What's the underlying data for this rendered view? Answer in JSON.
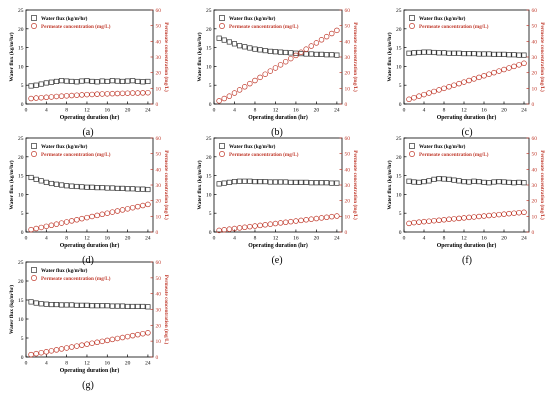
{
  "chart_data": [
    {
      "type": "scatter",
      "panel_label": "(a)",
      "xlabel": "Operating duration (hr)",
      "ylabel_left": "Water flux (kg/m²hr)",
      "ylabel_right": "Permeate concentration (mg/L)",
      "xlim": [
        0,
        25
      ],
      "ylim_left": [
        0,
        25
      ],
      "ylim_right": [
        0,
        60
      ],
      "xticks": [
        0,
        4,
        8,
        12,
        16,
        20,
        24
      ],
      "yticks_left": [
        0,
        5,
        10,
        15,
        20,
        25
      ],
      "yticks_right": [
        0,
        10,
        20,
        30,
        40,
        50,
        60
      ],
      "legend": [
        "Water flux (kg/m²hr)",
        "Permeate concentration (mg/L)"
      ],
      "series": [
        {
          "name": "Water flux (kg/m²hr)",
          "axis": "left",
          "marker": "square",
          "x": [
            1,
            2,
            3,
            4,
            5,
            6,
            7,
            8,
            9,
            10,
            11,
            12,
            13,
            14,
            15,
            16,
            17,
            18,
            19,
            20,
            21,
            22,
            23,
            24
          ],
          "y": [
            4.8,
            5.0,
            5.3,
            5.6,
            5.8,
            6.0,
            6.2,
            6.1,
            6.0,
            5.9,
            6.1,
            6.2,
            6.0,
            5.9,
            6.1,
            6.0,
            6.2,
            6.1,
            6.0,
            6.1,
            6.2,
            6.0,
            5.9,
            6.0
          ]
        },
        {
          "name": "Permeate concentration (mg/L)",
          "axis": "right",
          "marker": "circle",
          "x": [
            1,
            2,
            3,
            4,
            5,
            6,
            7,
            8,
            9,
            10,
            11,
            12,
            13,
            14,
            15,
            16,
            17,
            18,
            19,
            20,
            21,
            22,
            23,
            24
          ],
          "y": [
            3.5,
            3.8,
            4.0,
            4.3,
            4.5,
            4.8,
            5.0,
            5.2,
            5.4,
            5.6,
            5.8,
            6.0,
            6.1,
            6.3,
            6.4,
            6.5,
            6.6,
            6.7,
            6.8,
            6.9,
            7.0,
            7.0,
            7.1,
            7.2
          ]
        }
      ]
    },
    {
      "type": "scatter",
      "panel_label": "(b)",
      "xlabel": "Operating duration (hr)",
      "ylabel_left": "Water flux (kg/m²hr)",
      "ylabel_right": "Permeate concentration (mg/L)",
      "xlim": [
        0,
        25
      ],
      "ylim_left": [
        0,
        25
      ],
      "ylim_right": [
        0,
        60
      ],
      "xticks": [
        0,
        4,
        8,
        12,
        16,
        20,
        24
      ],
      "yticks_left": [
        0,
        5,
        10,
        15,
        20,
        25
      ],
      "yticks_right": [
        0,
        10,
        20,
        30,
        40,
        50,
        60
      ],
      "legend": [
        "Water flux (kg/m²hr)",
        "Permeate concentration (mg/L)"
      ],
      "series": [
        {
          "name": "Water flux (kg/m²hr)",
          "axis": "left",
          "marker": "square",
          "x": [
            1,
            2,
            3,
            4,
            5,
            6,
            7,
            8,
            9,
            10,
            11,
            12,
            13,
            14,
            15,
            16,
            17,
            18,
            19,
            20,
            21,
            22,
            23,
            24
          ],
          "y": [
            17.5,
            17.0,
            16.5,
            16.0,
            15.5,
            15.2,
            14.9,
            14.6,
            14.4,
            14.2,
            14.0,
            13.9,
            13.8,
            13.7,
            13.6,
            13.5,
            13.4,
            13.3,
            13.3,
            13.2,
            13.2,
            13.1,
            13.1,
            13.0
          ]
        },
        {
          "name": "Permeate concentration (mg/L)",
          "axis": "right",
          "marker": "circle",
          "x": [
            1,
            2,
            3,
            4,
            5,
            6,
            7,
            8,
            9,
            10,
            11,
            12,
            13,
            14,
            15,
            16,
            17,
            18,
            19,
            20,
            21,
            22,
            23,
            24
          ],
          "y": [
            2,
            3.5,
            5,
            7,
            9,
            11,
            13,
            15,
            17,
            19,
            21,
            23,
            25,
            27,
            29,
            31,
            33,
            35,
            37,
            39,
            41,
            43,
            45,
            47
          ]
        }
      ]
    },
    {
      "type": "scatter",
      "panel_label": "(c)",
      "xlabel": "Operating duration (hr)",
      "ylabel_left": "Water flux (kg/m²hr)",
      "ylabel_right": "Permeate concentration (mg/L)",
      "xlim": [
        0,
        25
      ],
      "ylim_left": [
        0,
        25
      ],
      "ylim_right": [
        0,
        60
      ],
      "xticks": [
        0,
        4,
        8,
        12,
        16,
        20,
        24
      ],
      "yticks_left": [
        0,
        5,
        10,
        15,
        20,
        25
      ],
      "yticks_right": [
        0,
        10,
        20,
        30,
        40,
        50,
        60
      ],
      "legend": [
        "Water flux (kg/m²hr)",
        "Permeate concentration (mg/L)"
      ],
      "series": [
        {
          "name": "Water flux (kg/m²hr)",
          "axis": "left",
          "marker": "square",
          "x": [
            1,
            2,
            3,
            4,
            5,
            6,
            7,
            8,
            9,
            10,
            11,
            12,
            13,
            14,
            15,
            16,
            17,
            18,
            19,
            20,
            21,
            22,
            23,
            24
          ],
          "y": [
            13.5,
            13.6,
            13.7,
            13.8,
            13.8,
            13.7,
            13.6,
            13.6,
            13.5,
            13.5,
            13.5,
            13.4,
            13.4,
            13.4,
            13.3,
            13.3,
            13.3,
            13.2,
            13.2,
            13.2,
            13.1,
            13.1,
            13.0,
            13.0
          ]
        },
        {
          "name": "Permeate concentration (mg/L)",
          "axis": "right",
          "marker": "circle",
          "x": [
            1,
            2,
            3,
            4,
            5,
            6,
            7,
            8,
            9,
            10,
            11,
            12,
            13,
            14,
            15,
            16,
            17,
            18,
            19,
            20,
            21,
            22,
            23,
            24
          ],
          "y": [
            3,
            4,
            5,
            6,
            7,
            8,
            9,
            10,
            11,
            12,
            13,
            14,
            15,
            16,
            17,
            18,
            19,
            20,
            21,
            22,
            23,
            24,
            25,
            26
          ]
        }
      ]
    },
    {
      "type": "scatter",
      "panel_label": "(d)",
      "xlabel": "Operating duration (hr)",
      "ylabel_left": "Water flux (kg/m²hr)",
      "ylabel_right": "Permeate concentration (mg/L)",
      "xlim": [
        0,
        25
      ],
      "ylim_left": [
        0,
        25
      ],
      "ylim_right": [
        0,
        60
      ],
      "xticks": [
        0,
        4,
        8,
        12,
        16,
        20,
        24
      ],
      "yticks_left": [
        0,
        5,
        10,
        15,
        20,
        25
      ],
      "yticks_right": [
        0,
        10,
        20,
        30,
        40,
        50,
        60
      ],
      "legend": [
        "Water flux (kg/m²hr)",
        "Permeate concentration (mg/L)"
      ],
      "series": [
        {
          "name": "Water flux (kg/m²hr)",
          "axis": "left",
          "marker": "square",
          "x": [
            1,
            2,
            3,
            4,
            5,
            6,
            7,
            8,
            9,
            10,
            11,
            12,
            13,
            14,
            15,
            16,
            17,
            18,
            19,
            20,
            21,
            22,
            23,
            24
          ],
          "y": [
            14.5,
            14.0,
            13.6,
            13.2,
            12.9,
            12.7,
            12.5,
            12.3,
            12.2,
            12.1,
            12.0,
            11.9,
            11.9,
            11.8,
            11.8,
            11.7,
            11.7,
            11.6,
            11.6,
            11.5,
            11.5,
            11.4,
            11.4,
            11.3
          ]
        },
        {
          "name": "Permeate concentration (mg/L)",
          "axis": "right",
          "marker": "circle",
          "x": [
            1,
            2,
            3,
            4,
            5,
            6,
            7,
            8,
            9,
            10,
            11,
            12,
            13,
            14,
            15,
            16,
            17,
            18,
            19,
            20,
            21,
            22,
            23,
            24
          ],
          "y": [
            1.5,
            2.2,
            2.9,
            3.6,
            4.3,
            5.0,
            5.7,
            6.4,
            7.1,
            7.8,
            8.5,
            9.2,
            9.9,
            10.6,
            11.3,
            12.0,
            12.7,
            13.4,
            14.1,
            14.8,
            15.5,
            16.2,
            16.9,
            17.6
          ]
        }
      ]
    },
    {
      "type": "scatter",
      "panel_label": "(e)",
      "xlabel": "Operating duration (hr)",
      "ylabel_left": "Water flux (kg/m²hr)",
      "ylabel_right": "Permeate concentration (mg/L)",
      "xlim": [
        0,
        25
      ],
      "ylim_left": [
        0,
        25
      ],
      "ylim_right": [
        0,
        60
      ],
      "xticks": [
        0,
        4,
        8,
        12,
        16,
        20,
        24
      ],
      "yticks_left": [
        0,
        5,
        10,
        15,
        20,
        25
      ],
      "yticks_right": [
        0,
        10,
        20,
        30,
        40,
        50,
        60
      ],
      "legend": [
        "Water flux (kg/m²hr)",
        "Permeate concentration (mg/L)"
      ],
      "series": [
        {
          "name": "Water flux (kg/m²hr)",
          "axis": "left",
          "marker": "square",
          "x": [
            1,
            2,
            3,
            4,
            5,
            6,
            7,
            8,
            9,
            10,
            11,
            12,
            13,
            14,
            15,
            16,
            17,
            18,
            19,
            20,
            21,
            22,
            23,
            24
          ],
          "y": [
            12.8,
            13.0,
            13.2,
            13.4,
            13.5,
            13.5,
            13.5,
            13.4,
            13.4,
            13.4,
            13.3,
            13.3,
            13.3,
            13.3,
            13.2,
            13.2,
            13.2,
            13.2,
            13.1,
            13.1,
            13.1,
            13.1,
            13.0,
            13.0
          ]
        },
        {
          "name": "Permeate concentration (mg/L)",
          "axis": "right",
          "marker": "circle",
          "x": [
            1,
            2,
            3,
            4,
            5,
            6,
            7,
            8,
            9,
            10,
            11,
            12,
            13,
            14,
            15,
            16,
            17,
            18,
            19,
            20,
            21,
            22,
            23,
            24
          ],
          "y": [
            1.0,
            1.4,
            1.8,
            2.2,
            2.6,
            3.0,
            3.4,
            3.8,
            4.2,
            4.6,
            5.0,
            5.4,
            5.8,
            6.2,
            6.6,
            7.0,
            7.4,
            7.8,
            8.2,
            8.6,
            9.0,
            9.4,
            9.8,
            10.2
          ]
        }
      ]
    },
    {
      "type": "scatter",
      "panel_label": "(f)",
      "xlabel": "Operating duration (hr)",
      "ylabel_left": "Water flux (kg/m²hr)",
      "ylabel_right": "Permeate concentration (mg/L)",
      "xlim": [
        0,
        25
      ],
      "ylim_left": [
        0,
        25
      ],
      "ylim_right": [
        0,
        60
      ],
      "xticks": [
        0,
        4,
        8,
        12,
        16,
        20,
        24
      ],
      "yticks_left": [
        0,
        5,
        10,
        15,
        20,
        25
      ],
      "yticks_right": [
        0,
        10,
        20,
        30,
        40,
        50,
        60
      ],
      "legend": [
        "Water flux (kg/m²hr)",
        "Permeate concentration (mg/L)"
      ],
      "series": [
        {
          "name": "Water flux (kg/m²hr)",
          "axis": "left",
          "marker": "square",
          "x": [
            1,
            2,
            3,
            4,
            5,
            6,
            7,
            8,
            9,
            10,
            11,
            12,
            13,
            14,
            15,
            16,
            17,
            18,
            19,
            20,
            21,
            22,
            23,
            24
          ],
          "y": [
            13.5,
            13.3,
            13.2,
            13.4,
            13.6,
            14.0,
            14.2,
            14.1,
            14.0,
            13.8,
            13.6,
            13.4,
            13.3,
            13.5,
            13.4,
            13.2,
            13.1,
            13.3,
            13.4,
            13.3,
            13.2,
            13.1,
            13.2,
            13.1
          ]
        },
        {
          "name": "Permeate concentration (mg/L)",
          "axis": "right",
          "marker": "circle",
          "x": [
            1,
            2,
            3,
            4,
            5,
            6,
            7,
            8,
            9,
            10,
            11,
            12,
            13,
            14,
            15,
            16,
            17,
            18,
            19,
            20,
            21,
            22,
            23,
            24
          ],
          "y": [
            5.5,
            6.0,
            6.3,
            6.6,
            6.9,
            7.2,
            7.5,
            7.8,
            8.1,
            8.4,
            8.7,
            9.0,
            9.3,
            9.6,
            9.9,
            10.2,
            10.5,
            10.8,
            11.1,
            11.4,
            11.7,
            12.0,
            12.3,
            12.6
          ]
        }
      ]
    },
    {
      "type": "scatter",
      "panel_label": "(g)",
      "xlabel": "Operating duration (hr)",
      "ylabel_left": "Water flux (kg/m²hr)",
      "ylabel_right": "Permeate concentration (mg/L)",
      "xlim": [
        0,
        25
      ],
      "ylim_left": [
        0,
        25
      ],
      "ylim_right": [
        0,
        60
      ],
      "xticks": [
        0,
        4,
        8,
        12,
        16,
        20,
        24
      ],
      "yticks_left": [
        0,
        5,
        10,
        15,
        20,
        25
      ],
      "yticks_right": [
        0,
        10,
        20,
        30,
        40,
        50,
        60
      ],
      "legend": [
        "Water flux (kg/m²hr)",
        "Permeate concentration (mg/L)"
      ],
      "series": [
        {
          "name": "Water flux (kg/m²hr)",
          "axis": "left",
          "marker": "square",
          "x": [
            1,
            2,
            3,
            4,
            5,
            6,
            7,
            8,
            9,
            10,
            11,
            12,
            13,
            14,
            15,
            16,
            17,
            18,
            19,
            20,
            21,
            22,
            23,
            24
          ],
          "y": [
            14.5,
            14.2,
            14.0,
            13.9,
            13.8,
            13.8,
            13.7,
            13.7,
            13.7,
            13.6,
            13.6,
            13.6,
            13.5,
            13.5,
            13.5,
            13.5,
            13.4,
            13.4,
            13.4,
            13.3,
            13.3,
            13.3,
            13.3,
            13.2
          ]
        },
        {
          "name": "Permeate concentration (mg/L)",
          "axis": "right",
          "marker": "circle",
          "x": [
            1,
            2,
            3,
            4,
            5,
            6,
            7,
            8,
            9,
            10,
            11,
            12,
            13,
            14,
            15,
            16,
            17,
            18,
            19,
            20,
            21,
            22,
            23,
            24
          ],
          "y": [
            1.5,
            2.1,
            2.7,
            3.3,
            3.9,
            4.5,
            5.1,
            5.7,
            6.3,
            6.9,
            7.5,
            8.1,
            8.7,
            9.3,
            9.9,
            10.5,
            11.1,
            11.7,
            12.3,
            12.9,
            13.5,
            14.1,
            14.7,
            15.3
          ]
        }
      ]
    }
  ],
  "colors": {
    "flux_series": "#333333",
    "concentration_series": "#c0392b",
    "left_axis": "#000000",
    "right_axis": "#c0392b"
  }
}
